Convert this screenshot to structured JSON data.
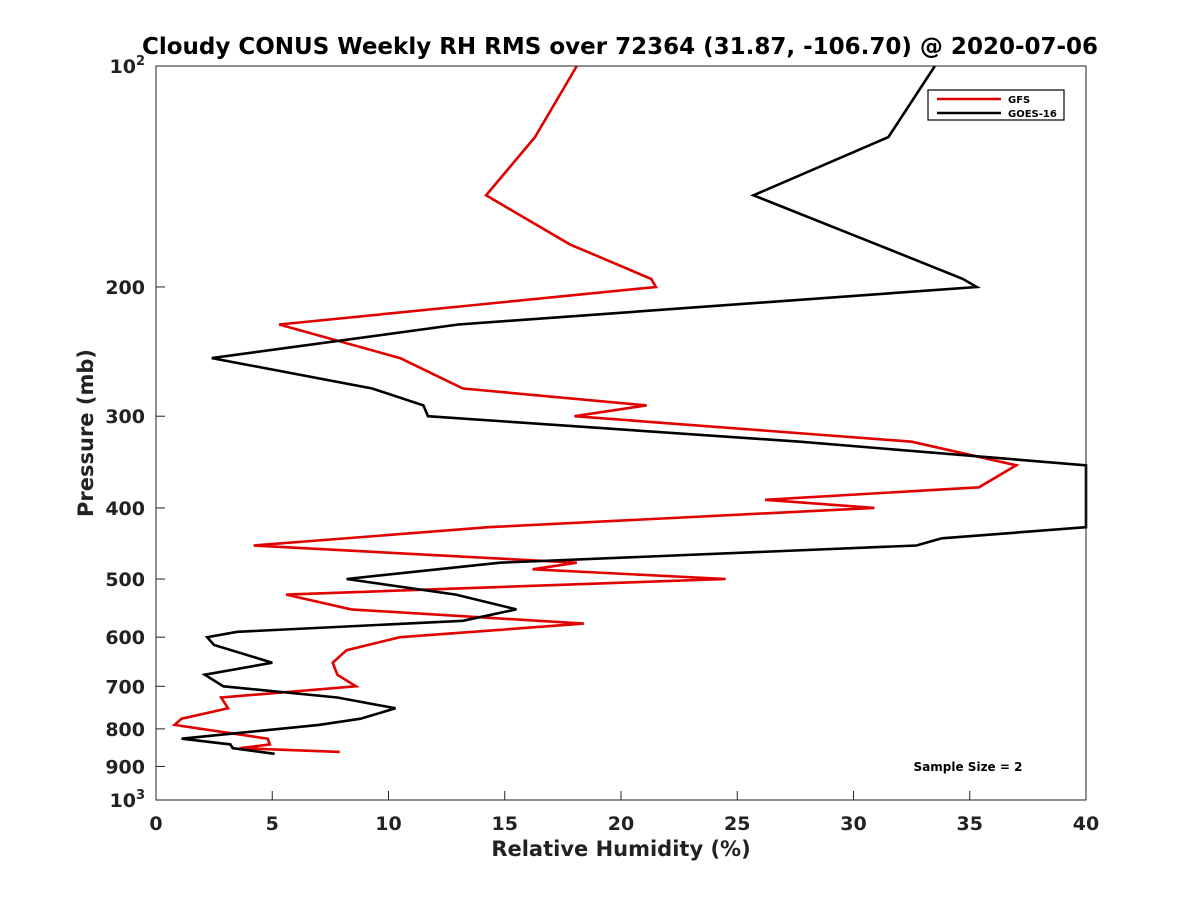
{
  "chart_data": {
    "type": "line",
    "title": "Cloudy CONUS Weekly RH RMS over 72364 (31.87, -106.70) @ 2020-07-06",
    "xlabel": "Relative Humidity (%)",
    "ylabel": "Pressure (mb)",
    "xlim": [
      0,
      40
    ],
    "ylim": [
      100,
      1000
    ],
    "yscale": "log",
    "y_reversed": true,
    "x_ticks": [
      "0",
      "5",
      "10",
      "15",
      "20",
      "25",
      "30",
      "35",
      "40"
    ],
    "y_ticks": [
      {
        "value": 100,
        "base": "10",
        "exp": "2"
      },
      {
        "value": 200,
        "label": "200"
      },
      {
        "value": 300,
        "label": "300"
      },
      {
        "value": 400,
        "label": "400"
      },
      {
        "value": 500,
        "label": "500"
      },
      {
        "value": 600,
        "label": "600"
      },
      {
        "value": 700,
        "label": "700"
      },
      {
        "value": 800,
        "label": "800"
      },
      {
        "value": 900,
        "label": "900"
      },
      {
        "value": 1000,
        "base": "10",
        "exp": "3"
      }
    ],
    "legend_position": "top-right",
    "annotation": "Sample Size = 2",
    "series": [
      {
        "name": "GFS",
        "color": "#e00000",
        "points": [
          [
            18.1,
            100
          ],
          [
            16.3,
            125
          ],
          [
            14.2,
            150
          ],
          [
            17.8,
            175
          ],
          [
            21.3,
            195
          ],
          [
            21.5,
            200
          ],
          [
            5.3,
            225
          ],
          [
            10.5,
            250
          ],
          [
            13.2,
            275
          ],
          [
            21.1,
            290
          ],
          [
            18.0,
            300
          ],
          [
            32.5,
            325
          ],
          [
            37.0,
            350
          ],
          [
            35.4,
            375
          ],
          [
            26.2,
            390
          ],
          [
            30.9,
            400
          ],
          [
            14.3,
            425
          ],
          [
            4.2,
            450
          ],
          [
            18.1,
            475
          ],
          [
            16.2,
            485
          ],
          [
            24.5,
            500
          ],
          [
            5.6,
            525
          ],
          [
            8.4,
            550
          ],
          [
            18.4,
            575
          ],
          [
            10.5,
            600
          ],
          [
            8.2,
            625
          ],
          [
            7.6,
            650
          ],
          [
            7.8,
            675
          ],
          [
            8.6,
            700
          ],
          [
            2.8,
            725
          ],
          [
            3.1,
            750
          ],
          [
            1.1,
            775
          ],
          [
            0.8,
            790
          ],
          [
            4.8,
            825
          ],
          [
            4.9,
            840
          ],
          [
            3.6,
            850
          ],
          [
            7.9,
            860
          ]
        ]
      },
      {
        "name": "GOES-16",
        "color": "#000000",
        "points": [
          [
            33.5,
            100
          ],
          [
            31.5,
            125
          ],
          [
            25.7,
            150
          ],
          [
            31.0,
            175
          ],
          [
            34.7,
            195
          ],
          [
            35.3,
            200
          ],
          [
            13.0,
            225
          ],
          [
            2.4,
            250
          ],
          [
            9.3,
            275
          ],
          [
            11.5,
            290
          ],
          [
            11.7,
            300
          ],
          [
            27.7,
            325
          ],
          [
            40.0,
            350
          ],
          [
            40.0,
            425
          ],
          [
            33.8,
            440
          ],
          [
            32.7,
            450
          ],
          [
            14.8,
            475
          ],
          [
            8.2,
            500
          ],
          [
            12.9,
            525
          ],
          [
            15.5,
            550
          ],
          [
            13.2,
            570
          ],
          [
            3.5,
            590
          ],
          [
            2.2,
            600
          ],
          [
            2.5,
            615
          ],
          [
            5.0,
            650
          ],
          [
            2.1,
            675
          ],
          [
            2.9,
            700
          ],
          [
            7.8,
            725
          ],
          [
            10.3,
            750
          ],
          [
            8.8,
            775
          ],
          [
            7.0,
            790
          ],
          [
            1.1,
            825
          ],
          [
            3.2,
            840
          ],
          [
            3.3,
            850
          ],
          [
            5.1,
            865
          ]
        ]
      }
    ]
  }
}
